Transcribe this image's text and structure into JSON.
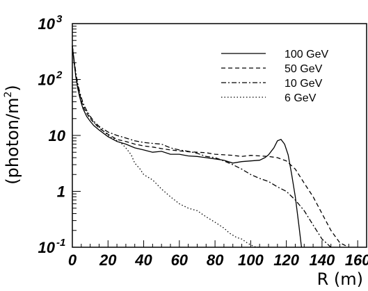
{
  "chart_data": {
    "type": "line",
    "title": "",
    "xlabel": "R (m)",
    "ylabel_main": "(photon/m",
    "ylabel_sup": "2",
    "ylabel_close": ")",
    "yscale": "log",
    "xlim": [
      0,
      165
    ],
    "ylim": [
      0.1,
      1000
    ],
    "grid": false,
    "legend_position": "top-right",
    "x_ticks": [
      "0",
      "20",
      "40",
      "60",
      "80",
      "100",
      "120",
      "140",
      "160"
    ],
    "y_ticks": [
      {
        "base": "10",
        "exp": "3"
      },
      {
        "base": "10",
        "exp": "2"
      },
      {
        "base": "10",
        "exp": ""
      },
      {
        "base": "1",
        "exp": ""
      },
      {
        "base": "10",
        "exp": "-1"
      }
    ],
    "series": [
      {
        "name": "100 GeV",
        "dash": "solid",
        "x": [
          0,
          1,
          2,
          3,
          4,
          5,
          6,
          8,
          10,
          12,
          15,
          20,
          25,
          30,
          35,
          40,
          45,
          50,
          55,
          60,
          65,
          70,
          75,
          80,
          85,
          90,
          95,
          100,
          105,
          108,
          110,
          113,
          115,
          117,
          119,
          121,
          123,
          125,
          127,
          128.5
        ],
        "y": [
          400,
          200,
          110,
          70,
          50,
          38,
          30,
          22,
          18,
          15,
          12.5,
          9.5,
          7.8,
          7.0,
          6.0,
          5.5,
          5.0,
          5.2,
          4.6,
          4.6,
          4.3,
          4.2,
          4.0,
          3.8,
          3.6,
          3.2,
          3.4,
          3.5,
          3.6,
          4.0,
          4.5,
          6.0,
          8.0,
          8.5,
          7.0,
          4.5,
          2.0,
          0.8,
          0.25,
          0.1
        ]
      },
      {
        "name": "50 GeV",
        "dash": "dashed",
        "x": [
          0,
          1,
          2,
          3,
          4,
          5,
          6,
          8,
          10,
          12,
          15,
          20,
          25,
          30,
          35,
          40,
          45,
          50,
          55,
          60,
          65,
          70,
          75,
          80,
          85,
          90,
          95,
          100,
          105,
          110,
          115,
          120,
          125,
          130,
          135,
          140,
          145,
          150,
          155
        ],
        "y": [
          400,
          200,
          110,
          75,
          55,
          42,
          33,
          25,
          20,
          17,
          13.5,
          10.5,
          8.5,
          7.8,
          7.0,
          6.5,
          6.2,
          5.8,
          5.5,
          5.3,
          5.1,
          5.0,
          4.9,
          4.6,
          4.5,
          4.4,
          4.2,
          4.4,
          4.3,
          4.2,
          4.0,
          3.5,
          2.5,
          1.4,
          0.8,
          0.4,
          0.2,
          0.12,
          0.1
        ]
      },
      {
        "name": "10 GeV",
        "dash": "dashdot",
        "x": [
          0,
          1,
          2,
          3,
          4,
          5,
          6,
          8,
          10,
          12,
          15,
          20,
          25,
          30,
          35,
          40,
          45,
          50,
          55,
          60,
          65,
          70,
          75,
          80,
          85,
          90,
          95,
          100,
          105,
          110,
          115,
          120,
          125,
          130,
          135,
          140,
          145
        ],
        "y": [
          400,
          220,
          130,
          85,
          62,
          48,
          38,
          28,
          22,
          18,
          14.5,
          11.5,
          10,
          9.0,
          8.0,
          7.5,
          7.2,
          7.0,
          6.0,
          5.5,
          5.2,
          4.8,
          4.2,
          4.0,
          3.5,
          3.0,
          2.5,
          2.0,
          1.7,
          1.5,
          1.2,
          1.0,
          0.7,
          0.45,
          0.25,
          0.14,
          0.1
        ]
      },
      {
        "name": "6 GeV",
        "dash": "dotted",
        "x": [
          0,
          1,
          2,
          3,
          4,
          5,
          6,
          8,
          10,
          12,
          15,
          18,
          20,
          24,
          28,
          30,
          33,
          35,
          38,
          40,
          45,
          50,
          55,
          60,
          65,
          70,
          75,
          80,
          85,
          88,
          92,
          95,
          98,
          100,
          103,
          105
        ],
        "y": [
          400,
          210,
          120,
          80,
          58,
          45,
          36,
          27,
          21,
          17,
          14,
          11.5,
          10,
          8.5,
          7.0,
          6.0,
          4.5,
          3.2,
          2.5,
          2.0,
          1.6,
          1.1,
          0.8,
          0.6,
          0.5,
          0.45,
          0.35,
          0.28,
          0.22,
          0.18,
          0.15,
          0.14,
          0.12,
          0.11,
          0.1,
          0.1
        ]
      }
    ]
  }
}
